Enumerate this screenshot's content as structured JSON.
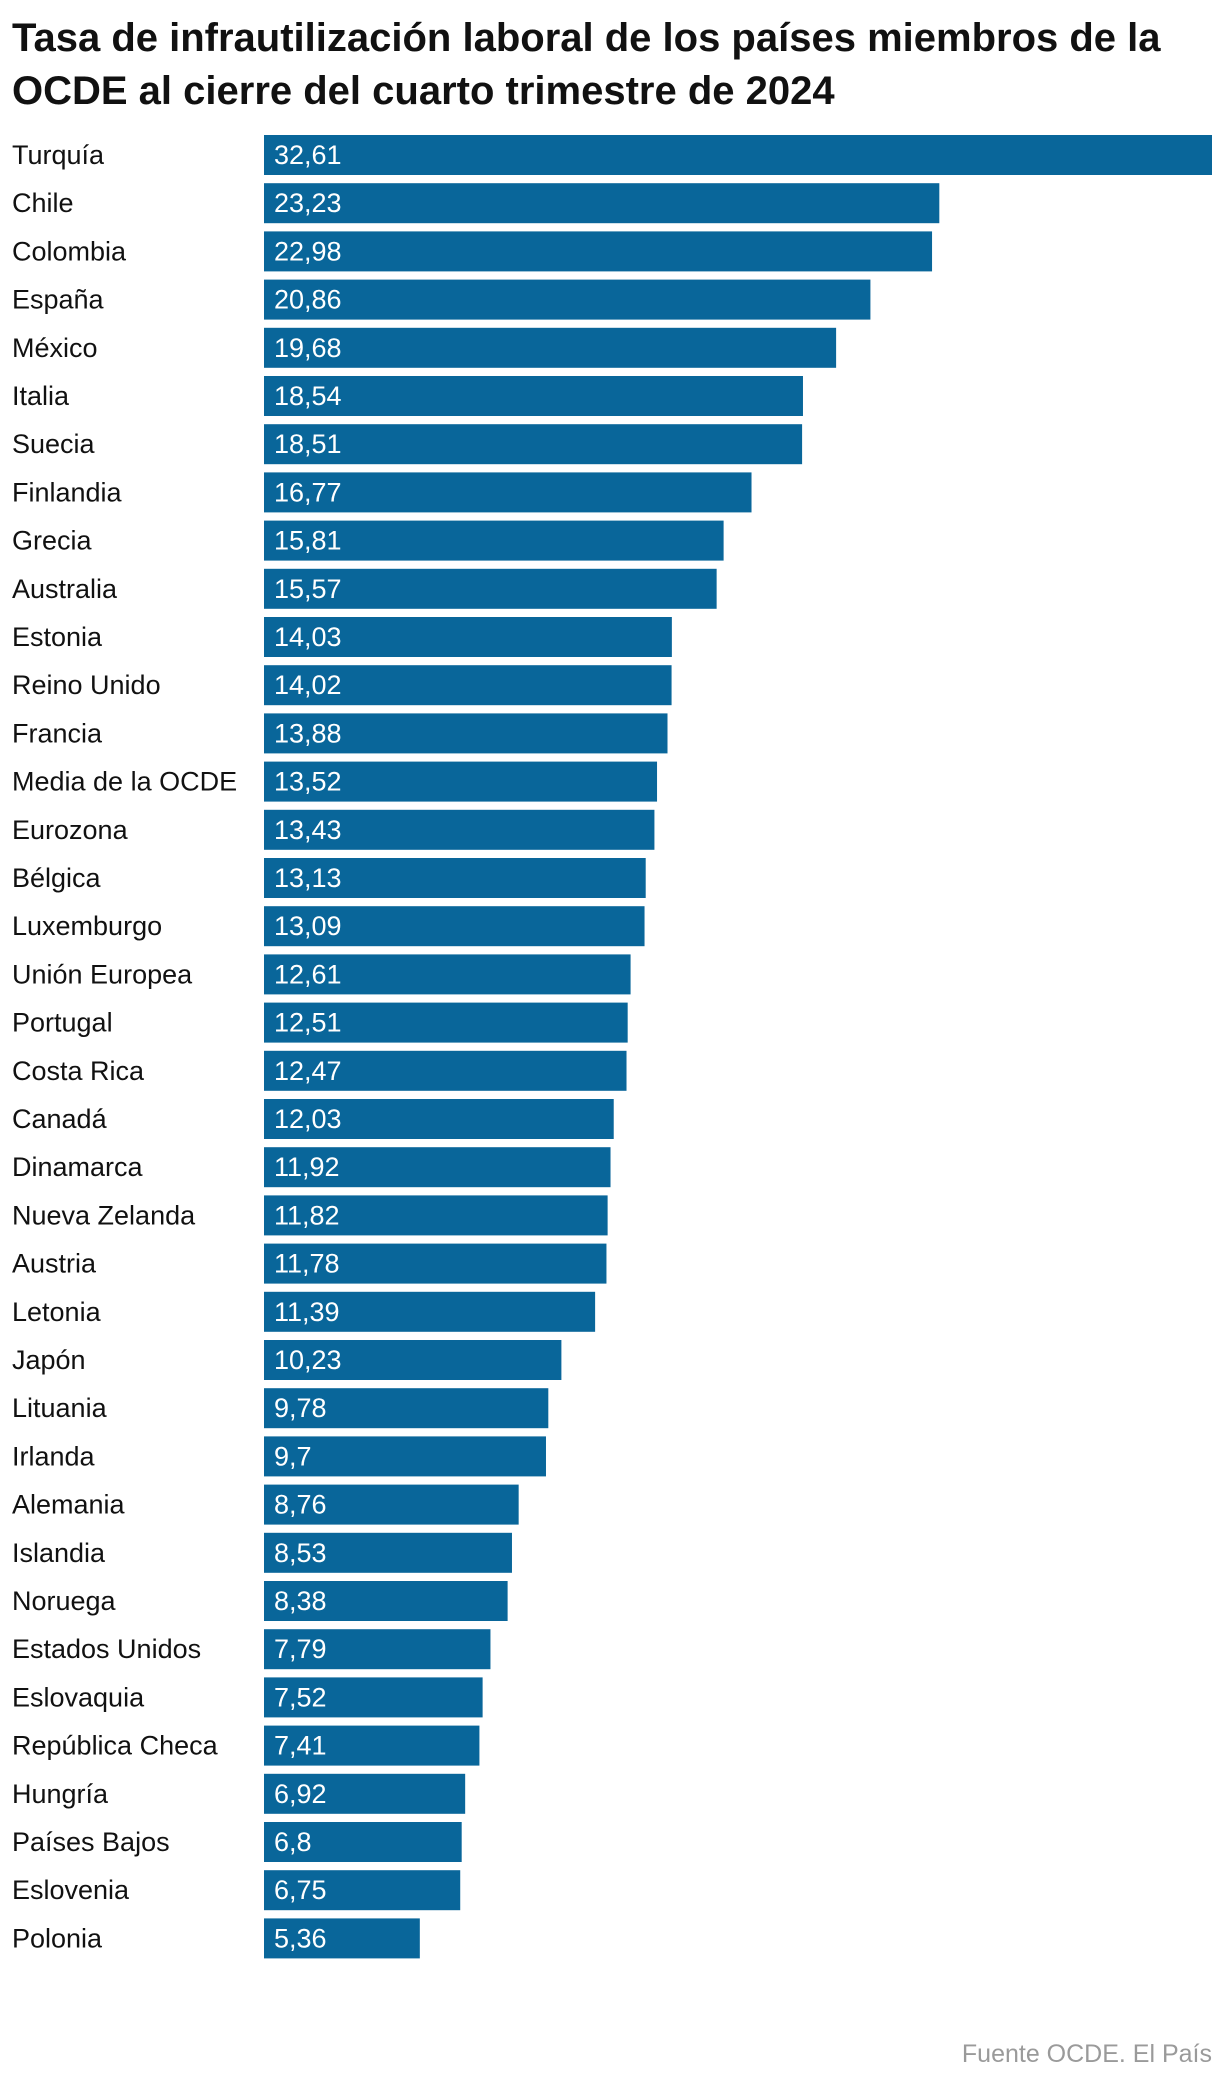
{
  "chart_data": {
    "type": "bar",
    "orientation": "horizontal",
    "title": "Tasa de infrautilización laboral de los países miembros de la OCDE al cierre del cuarto trimestre de 2024",
    "source": "Fuente OCDE. El País",
    "bar_color": "#09669a",
    "label_color": "#ffffff",
    "categories": [
      "Turquía",
      "Chile",
      "Colombia",
      "España",
      "México",
      "Italia",
      "Suecia",
      "Finlandia",
      "Grecia",
      "Australia",
      "Estonia",
      "Reino Unido",
      "Francia",
      "Media de la OCDE",
      "Eurozona",
      "Bélgica",
      "Luxemburgo",
      "Unión Europea",
      "Portugal",
      "Costa Rica",
      "Canadá",
      "Dinamarca",
      "Nueva Zelanda",
      "Austria",
      "Letonia",
      "Japón",
      "Lituania",
      "Irlanda",
      "Alemania",
      "Islandia",
      "Noruega",
      "Estados Unidos",
      "Eslovaquia",
      "República Checa",
      "Hungría",
      "Países Bajos",
      "Eslovenia",
      "Polonia"
    ],
    "values": [
      32.61,
      23.23,
      22.98,
      20.86,
      19.68,
      18.54,
      18.51,
      16.77,
      15.81,
      15.57,
      14.03,
      14.02,
      13.88,
      13.52,
      13.43,
      13.13,
      13.09,
      12.61,
      12.51,
      12.47,
      12.03,
      11.92,
      11.82,
      11.78,
      11.39,
      10.23,
      9.78,
      9.7,
      8.76,
      8.53,
      8.38,
      7.79,
      7.52,
      7.41,
      6.92,
      6.8,
      6.75,
      5.36
    ],
    "value_labels": [
      "32,61",
      "23,23",
      "22,98",
      "20,86",
      "19,68",
      "18,54",
      "18,51",
      "16,77",
      "15,81",
      "15,57",
      "14,03",
      "14,02",
      "13,88",
      "13,52",
      "13,43",
      "13,13",
      "13,09",
      "12,61",
      "12,51",
      "12,47",
      "12,03",
      "11,92",
      "11,82",
      "11,78",
      "11,39",
      "10,23",
      "9,78",
      "9,7",
      "8,76",
      "8,53",
      "8,38",
      "7,79",
      "7,52",
      "7,41",
      "6,92",
      "6,8",
      "6,75",
      "5,36"
    ],
    "xlim": [
      0,
      32.61
    ],
    "grid": false,
    "legend": "none"
  }
}
